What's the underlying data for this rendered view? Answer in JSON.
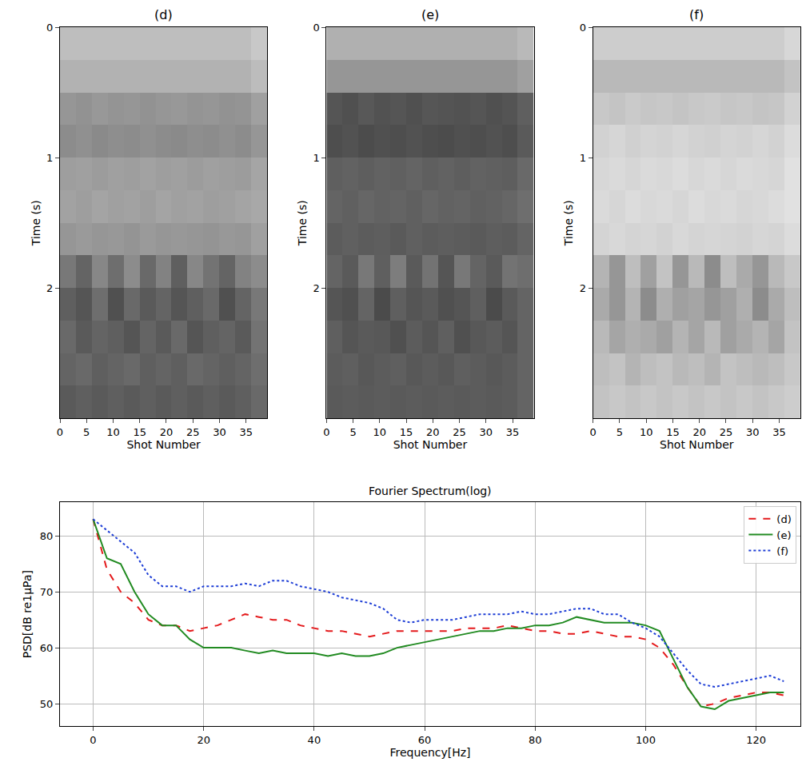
{
  "chart_data": [
    {
      "type": "heatmap",
      "title": "(d)",
      "x_label": "Shot Number",
      "y_label": "Time (s)",
      "x": [
        1.5,
        4.5,
        7.5,
        10.5,
        13.5,
        16.5,
        19.5,
        22.5,
        25.5,
        28.5,
        31.5,
        34.5,
        37.5
      ],
      "y": [
        0.125,
        0.375,
        0.625,
        0.875,
        1.125,
        1.375,
        1.625,
        1.875,
        2.125,
        2.375,
        2.625,
        2.875
      ],
      "z": [
        [
          190,
          190,
          190,
          190,
          190,
          190,
          190,
          190,
          190,
          190,
          190,
          190,
          200
        ],
        [
          178,
          178,
          178,
          178,
          178,
          178,
          178,
          178,
          178,
          178,
          178,
          178,
          188
        ],
        [
          150,
          146,
          152,
          148,
          150,
          146,
          150,
          152,
          148,
          150,
          146,
          148,
          160
        ],
        [
          140,
          144,
          138,
          142,
          140,
          144,
          140,
          138,
          142,
          140,
          144,
          140,
          150
        ],
        [
          158,
          160,
          156,
          160,
          158,
          162,
          158,
          160,
          156,
          160,
          158,
          156,
          165
        ],
        [
          162,
          158,
          164,
          160,
          162,
          158,
          164,
          160,
          162,
          158,
          160,
          164,
          168
        ],
        [
          150,
          154,
          150,
          152,
          148,
          154,
          150,
          152,
          150,
          148,
          152,
          150,
          160
        ],
        [
          120,
          100,
          135,
          110,
          140,
          105,
          130,
          95,
          135,
          115,
          100,
          130,
          140
        ],
        [
          95,
          85,
          110,
          80,
          105,
          90,
          100,
          85,
          95,
          105,
          80,
          100,
          120
        ],
        [
          105,
          90,
          100,
          95,
          85,
          100,
          90,
          105,
          85,
          95,
          100,
          90,
          115
        ],
        [
          100,
          105,
          95,
          100,
          105,
          95,
          100,
          95,
          105,
          100,
          95,
          100,
          110
        ],
        [
          90,
          95,
          90,
          95,
          90,
          95,
          90,
          95,
          90,
          95,
          90,
          95,
          105
        ]
      ],
      "zlim": [
        0,
        255
      ],
      "xlim": [
        0,
        39
      ],
      "ylim": [
        0,
        3
      ],
      "xticks": [
        0,
        5,
        10,
        15,
        20,
        25,
        30,
        35
      ],
      "yticks": [
        0,
        1,
        2
      ]
    },
    {
      "type": "heatmap",
      "title": "(e)",
      "x_label": "Shot Number",
      "y_label": "Time (s)",
      "x": [
        1.5,
        4.5,
        7.5,
        10.5,
        13.5,
        16.5,
        19.5,
        22.5,
        25.5,
        28.5,
        31.5,
        34.5,
        37.5
      ],
      "y": [
        0.125,
        0.375,
        0.625,
        0.875,
        1.125,
        1.375,
        1.625,
        1.875,
        2.125,
        2.375,
        2.625,
        2.875
      ],
      "z": [
        [
          176,
          176,
          176,
          176,
          176,
          176,
          176,
          176,
          176,
          176,
          176,
          176,
          185
        ],
        [
          150,
          150,
          150,
          150,
          150,
          150,
          150,
          150,
          150,
          150,
          150,
          150,
          160
        ],
        [
          85,
          80,
          88,
          82,
          85,
          80,
          86,
          84,
          82,
          85,
          80,
          84,
          95
        ],
        [
          78,
          82,
          76,
          80,
          78,
          82,
          78,
          76,
          80,
          78,
          82,
          78,
          90
        ],
        [
          95,
          98,
          94,
          98,
          96,
          100,
          95,
          98,
          94,
          98,
          96,
          94,
          105
        ],
        [
          100,
          96,
          102,
          98,
          100,
          96,
          102,
          98,
          100,
          96,
          98,
          102,
          110
        ],
        [
          92,
          96,
          92,
          94,
          90,
          96,
          92,
          94,
          92,
          90,
          94,
          92,
          100
        ],
        [
          100,
          90,
          120,
          95,
          125,
          90,
          115,
          85,
          120,
          100,
          90,
          115,
          110
        ],
        [
          85,
          80,
          100,
          75,
          95,
          85,
          90,
          80,
          85,
          95,
          75,
          90,
          100
        ],
        [
          95,
          85,
          90,
          88,
          80,
          92,
          85,
          95,
          80,
          88,
          92,
          85,
          100
        ],
        [
          92,
          95,
          88,
          92,
          95,
          88,
          92,
          88,
          95,
          92,
          88,
          92,
          100
        ],
        [
          90,
          92,
          90,
          92,
          90,
          92,
          90,
          92,
          90,
          92,
          90,
          92,
          100
        ]
      ],
      "zlim": [
        0,
        255
      ],
      "xlim": [
        0,
        39
      ],
      "ylim": [
        0,
        3
      ],
      "xticks": [
        0,
        5,
        10,
        15,
        20,
        25,
        30,
        35
      ],
      "yticks": [
        0,
        1,
        2
      ]
    },
    {
      "type": "heatmap",
      "title": "(f)",
      "x_label": "Shot Number",
      "y_label": "Time (s)",
      "x": [
        1.5,
        4.5,
        7.5,
        10.5,
        13.5,
        16.5,
        19.5,
        22.5,
        25.5,
        28.5,
        31.5,
        34.5,
        37.5
      ],
      "y": [
        0.125,
        0.375,
        0.625,
        0.875,
        1.125,
        1.375,
        1.625,
        1.875,
        2.125,
        2.375,
        2.625,
        2.875
      ],
      "z": [
        [
          205,
          205,
          205,
          205,
          205,
          205,
          205,
          205,
          205,
          205,
          205,
          205,
          215
        ],
        [
          185,
          185,
          185,
          185,
          185,
          185,
          185,
          185,
          185,
          185,
          185,
          185,
          195
        ],
        [
          200,
          196,
          202,
          198,
          200,
          196,
          200,
          202,
          198,
          200,
          196,
          198,
          210
        ],
        [
          210,
          214,
          208,
          212,
          210,
          214,
          210,
          208,
          212,
          210,
          214,
          210,
          220
        ],
        [
          215,
          218,
          214,
          218,
          216,
          220,
          215,
          218,
          214,
          218,
          216,
          214,
          225
        ],
        [
          218,
          214,
          220,
          216,
          218,
          214,
          220,
          216,
          218,
          214,
          216,
          220,
          225
        ],
        [
          212,
          216,
          212,
          214,
          210,
          216,
          212,
          214,
          212,
          210,
          214,
          212,
          220
        ],
        [
          180,
          150,
          190,
          160,
          195,
          150,
          185,
          140,
          190,
          170,
          150,
          185,
          200
        ],
        [
          170,
          150,
          180,
          140,
          175,
          160,
          165,
          150,
          160,
          175,
          140,
          170,
          190
        ],
        [
          185,
          165,
          175,
          170,
          160,
          180,
          165,
          185,
          160,
          170,
          180,
          165,
          195
        ],
        [
          190,
          195,
          180,
          190,
          195,
          185,
          190,
          180,
          195,
          190,
          185,
          190,
          200
        ],
        [
          195,
          200,
          195,
          200,
          195,
          200,
          195,
          200,
          195,
          200,
          195,
          200,
          205
        ]
      ],
      "zlim": [
        0,
        255
      ],
      "xlim": [
        0,
        39
      ],
      "ylim": [
        0,
        3
      ],
      "xticks": [
        0,
        5,
        10,
        15,
        20,
        25,
        30,
        35
      ],
      "yticks": [
        0,
        1,
        2
      ]
    },
    {
      "type": "line",
      "title": "Fourier Spectrum(log)",
      "x_label": "Frequency[Hz]",
      "y_label": "PSD[dB re1μPa]",
      "x": [
        0,
        2.5,
        5,
        7.5,
        10,
        12.5,
        15,
        17.5,
        20,
        22.5,
        25,
        27.5,
        30,
        32.5,
        35,
        37.5,
        40,
        42.5,
        45,
        47.5,
        50,
        52.5,
        55,
        57.5,
        60,
        62.5,
        65,
        67.5,
        70,
        72.5,
        75,
        77.5,
        80,
        82.5,
        85,
        87.5,
        90,
        92.5,
        95,
        97.5,
        100,
        102.5,
        105,
        107.5,
        110,
        112.5,
        115,
        117.5,
        120,
        122.5,
        125
      ],
      "series": [
        {
          "name": "(d)",
          "color": "#e41a1c",
          "line_style": "dash",
          "values": [
            83,
            74,
            70,
            68,
            65,
            64,
            64,
            63,
            63.5,
            64,
            65,
            66,
            65.5,
            65,
            65,
            64,
            63.5,
            63,
            63,
            62.5,
            62,
            62.5,
            63,
            63,
            63,
            63,
            63,
            63.5,
            63.5,
            63.5,
            64,
            63.5,
            63,
            63,
            62.5,
            62.5,
            63,
            62.5,
            62,
            62,
            61.5,
            60,
            57,
            53,
            49.5,
            50,
            51,
            51.5,
            52,
            52,
            51.5
          ]
        },
        {
          "name": "(e)",
          "color": "#228b22",
          "line_style": "solid",
          "values": [
            83,
            76,
            75,
            70,
            66,
            64,
            64,
            61.5,
            60,
            60,
            60,
            59.5,
            59,
            59.5,
            59,
            59,
            59,
            58.5,
            59,
            58.5,
            58.5,
            59,
            60,
            60.5,
            61,
            61.5,
            62,
            62.5,
            63,
            63,
            63.5,
            63.5,
            64,
            64,
            64.5,
            65.5,
            65,
            64.5,
            64.5,
            64.5,
            64,
            63,
            58,
            53,
            49.5,
            49,
            50.5,
            51,
            51.5,
            52,
            52
          ]
        },
        {
          "name": "(f)",
          "color": "#1f3fd6",
          "line_style": "dot",
          "values": [
            83,
            81,
            79,
            77,
            73,
            71,
            71,
            70,
            71,
            71,
            71,
            71.5,
            71,
            72,
            72,
            71,
            70.5,
            70,
            69,
            68.5,
            68,
            67,
            65,
            64.5,
            65,
            65,
            65,
            65.5,
            66,
            66,
            66,
            66.5,
            66,
            66,
            66.5,
            67,
            67,
            66,
            66,
            64.5,
            63.5,
            62,
            59,
            56,
            53.5,
            53,
            53.5,
            54,
            54.5,
            55,
            54
          ]
        }
      ],
      "xlim": [
        -6,
        128
      ],
      "ylim": [
        46,
        86
      ],
      "xticks": [
        0,
        20,
        40,
        60,
        80,
        100,
        120
      ],
      "yticks": [
        50,
        60,
        70,
        80
      ],
      "grid": true,
      "legend": "top-right"
    }
  ]
}
